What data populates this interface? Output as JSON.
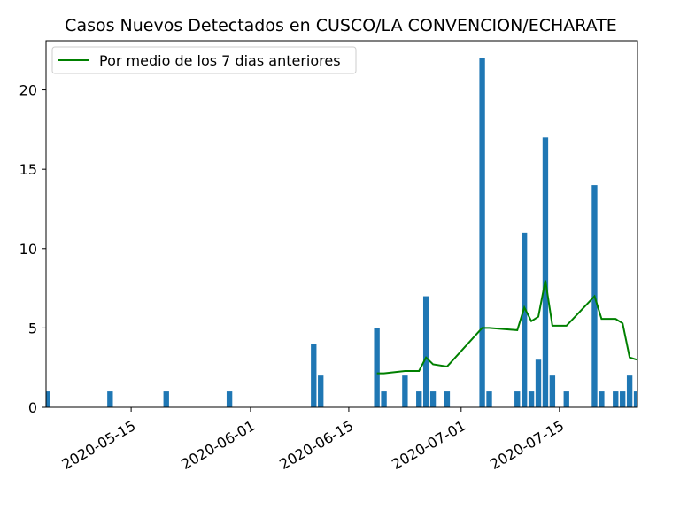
{
  "chart_data": {
    "type": "bar",
    "title": "Casos Nuevos Detectados en CUSCO/LA CONVENCION/ECHARATE",
    "xlabel": "",
    "ylabel": "",
    "x_axis": {
      "type": "date",
      "range": [
        "2020-05-03",
        "2020-07-26"
      ],
      "ticks": [
        "2020-05-15",
        "2020-06-01",
        "2020-06-15",
        "2020-07-01",
        "2020-07-15"
      ]
    },
    "y_axis": {
      "range": [
        0,
        23.1
      ],
      "ticks": [
        0,
        5,
        10,
        15,
        20
      ]
    },
    "grid": false,
    "legend": {
      "placement": "top-left",
      "entries": [
        "Por medio de los 7 dias anteriores"
      ]
    },
    "colors": {
      "bars": "#1f77b4",
      "line": "#008000"
    },
    "series": [
      {
        "type": "bar",
        "points": [
          {
            "x": "2020-05-03",
            "y": 1
          },
          {
            "x": "2020-05-12",
            "y": 1
          },
          {
            "x": "2020-05-20",
            "y": 1
          },
          {
            "x": "2020-05-29",
            "y": 1
          },
          {
            "x": "2020-06-10",
            "y": 4
          },
          {
            "x": "2020-06-11",
            "y": 2
          },
          {
            "x": "2020-06-19",
            "y": 5
          },
          {
            "x": "2020-06-20",
            "y": 1
          },
          {
            "x": "2020-06-23",
            "y": 2
          },
          {
            "x": "2020-06-25",
            "y": 1
          },
          {
            "x": "2020-06-26",
            "y": 7
          },
          {
            "x": "2020-06-27",
            "y": 1
          },
          {
            "x": "2020-06-29",
            "y": 1
          },
          {
            "x": "2020-07-04",
            "y": 22
          },
          {
            "x": "2020-07-05",
            "y": 1
          },
          {
            "x": "2020-07-09",
            "y": 1
          },
          {
            "x": "2020-07-10",
            "y": 11
          },
          {
            "x": "2020-07-11",
            "y": 1
          },
          {
            "x": "2020-07-12",
            "y": 3
          },
          {
            "x": "2020-07-13",
            "y": 17
          },
          {
            "x": "2020-07-14",
            "y": 2
          },
          {
            "x": "2020-07-16",
            "y": 1
          },
          {
            "x": "2020-07-20",
            "y": 14
          },
          {
            "x": "2020-07-21",
            "y": 1
          },
          {
            "x": "2020-07-23",
            "y": 1
          },
          {
            "x": "2020-07-24",
            "y": 1
          },
          {
            "x": "2020-07-25",
            "y": 2
          },
          {
            "x": "2020-07-26",
            "y": 1
          }
        ]
      },
      {
        "name": "Por medio de los 7 dias anteriores",
        "type": "line",
        "points": [
          {
            "x": "2020-06-19",
            "y": 2.14
          },
          {
            "x": "2020-06-20",
            "y": 2.14
          },
          {
            "x": "2020-06-23",
            "y": 2.29
          },
          {
            "x": "2020-06-25",
            "y": 2.29
          },
          {
            "x": "2020-06-26",
            "y": 3.14
          },
          {
            "x": "2020-06-27",
            "y": 2.71
          },
          {
            "x": "2020-06-29",
            "y": 2.57
          },
          {
            "x": "2020-07-04",
            "y": 5.0
          },
          {
            "x": "2020-07-05",
            "y": 5.0
          },
          {
            "x": "2020-07-09",
            "y": 4.86
          },
          {
            "x": "2020-07-10",
            "y": 6.29
          },
          {
            "x": "2020-07-11",
            "y": 5.43
          },
          {
            "x": "2020-07-12",
            "y": 5.71
          },
          {
            "x": "2020-07-13",
            "y": 8.0
          },
          {
            "x": "2020-07-14",
            "y": 5.14
          },
          {
            "x": "2020-07-16",
            "y": 5.14
          },
          {
            "x": "2020-07-20",
            "y": 7.0
          },
          {
            "x": "2020-07-21",
            "y": 5.57
          },
          {
            "x": "2020-07-23",
            "y": 5.57
          },
          {
            "x": "2020-07-24",
            "y": 5.29
          },
          {
            "x": "2020-07-25",
            "y": 3.14
          },
          {
            "x": "2020-07-26",
            "y": 3.0
          }
        ]
      }
    ]
  }
}
